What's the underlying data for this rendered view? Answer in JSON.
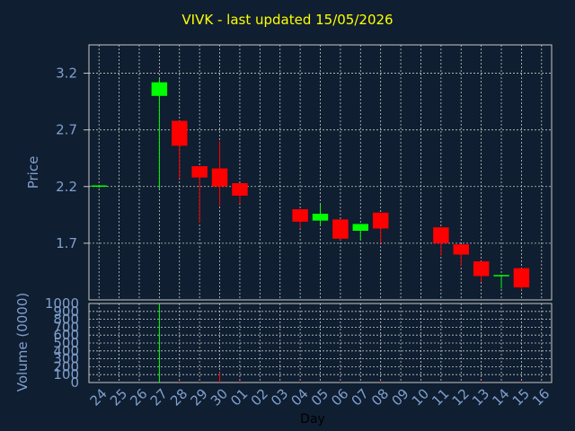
{
  "chart_data": {
    "type": "candlestick",
    "title": "VIVK - last updated 15/05/2026",
    "xlabel": "Day",
    "price_panel": {
      "ylabel": "Price",
      "ylim": [
        1.2,
        3.45
      ],
      "yticks": [
        "1.7",
        "2.2",
        "2.7",
        "3.2"
      ]
    },
    "volume_panel": {
      "ylabel": "Volume (0000)",
      "ylim": [
        0,
        1000
      ],
      "yticks": [
        "0",
        "100",
        "200",
        "300",
        "400",
        "500",
        "600",
        "700",
        "800",
        "900",
        "1000"
      ]
    },
    "x_labels": [
      "24",
      "25",
      "26",
      "27",
      "28",
      "29",
      "30",
      "01",
      "02",
      "03",
      "04",
      "05",
      "06",
      "07",
      "08",
      "09",
      "10",
      "11",
      "12",
      "13",
      "14",
      "15",
      "16"
    ],
    "grid": true,
    "up_color": "#00ff00",
    "down_color": "#ff0000",
    "candles": [
      {
        "day": "24",
        "open": 2.2,
        "high": 2.21,
        "low": 2.19,
        "close": 2.21,
        "volume": 0
      },
      {
        "day": "27",
        "open": 3.0,
        "high": 3.15,
        "low": 2.18,
        "close": 3.12,
        "volume": 1000
      },
      {
        "day": "28",
        "open": 2.78,
        "high": 2.78,
        "low": 2.27,
        "close": 2.56,
        "volume": 20
      },
      {
        "day": "29",
        "open": 2.38,
        "high": 2.38,
        "low": 1.88,
        "close": 2.28,
        "volume": 10
      },
      {
        "day": "30",
        "open": 2.36,
        "high": 2.6,
        "low": 2.03,
        "close": 2.2,
        "volume": 130
      },
      {
        "day": "01",
        "open": 2.23,
        "high": 2.23,
        "low": 2.05,
        "close": 2.12,
        "volume": 20
      },
      {
        "day": "04",
        "open": 2.0,
        "high": 2.0,
        "low": 1.83,
        "close": 1.89,
        "volume": 10
      },
      {
        "day": "05",
        "open": 1.9,
        "high": 2.04,
        "low": 1.86,
        "close": 1.96,
        "volume": 0
      },
      {
        "day": "06",
        "open": 1.91,
        "high": 1.91,
        "low": 1.73,
        "close": 1.74,
        "volume": 10
      },
      {
        "day": "07",
        "open": 1.81,
        "high": 1.87,
        "low": 1.73,
        "close": 1.87,
        "volume": 0
      },
      {
        "day": "08",
        "open": 1.97,
        "high": 1.97,
        "low": 1.7,
        "close": 1.83,
        "volume": 20
      },
      {
        "day": "11",
        "open": 1.84,
        "high": 1.84,
        "low": 1.59,
        "close": 1.7,
        "volume": 0
      },
      {
        "day": "12",
        "open": 1.69,
        "high": 1.69,
        "low": 1.5,
        "close": 1.6,
        "volume": 0
      },
      {
        "day": "13",
        "open": 1.54,
        "high": 1.54,
        "low": 1.36,
        "close": 1.41,
        "volume": 10
      },
      {
        "day": "14",
        "open": 1.41,
        "high": 1.42,
        "low": 1.3,
        "close": 1.42,
        "volume": 0
      },
      {
        "day": "15",
        "open": 1.48,
        "high": 1.48,
        "low": 1.29,
        "close": 1.31,
        "volume": 10
      }
    ]
  }
}
